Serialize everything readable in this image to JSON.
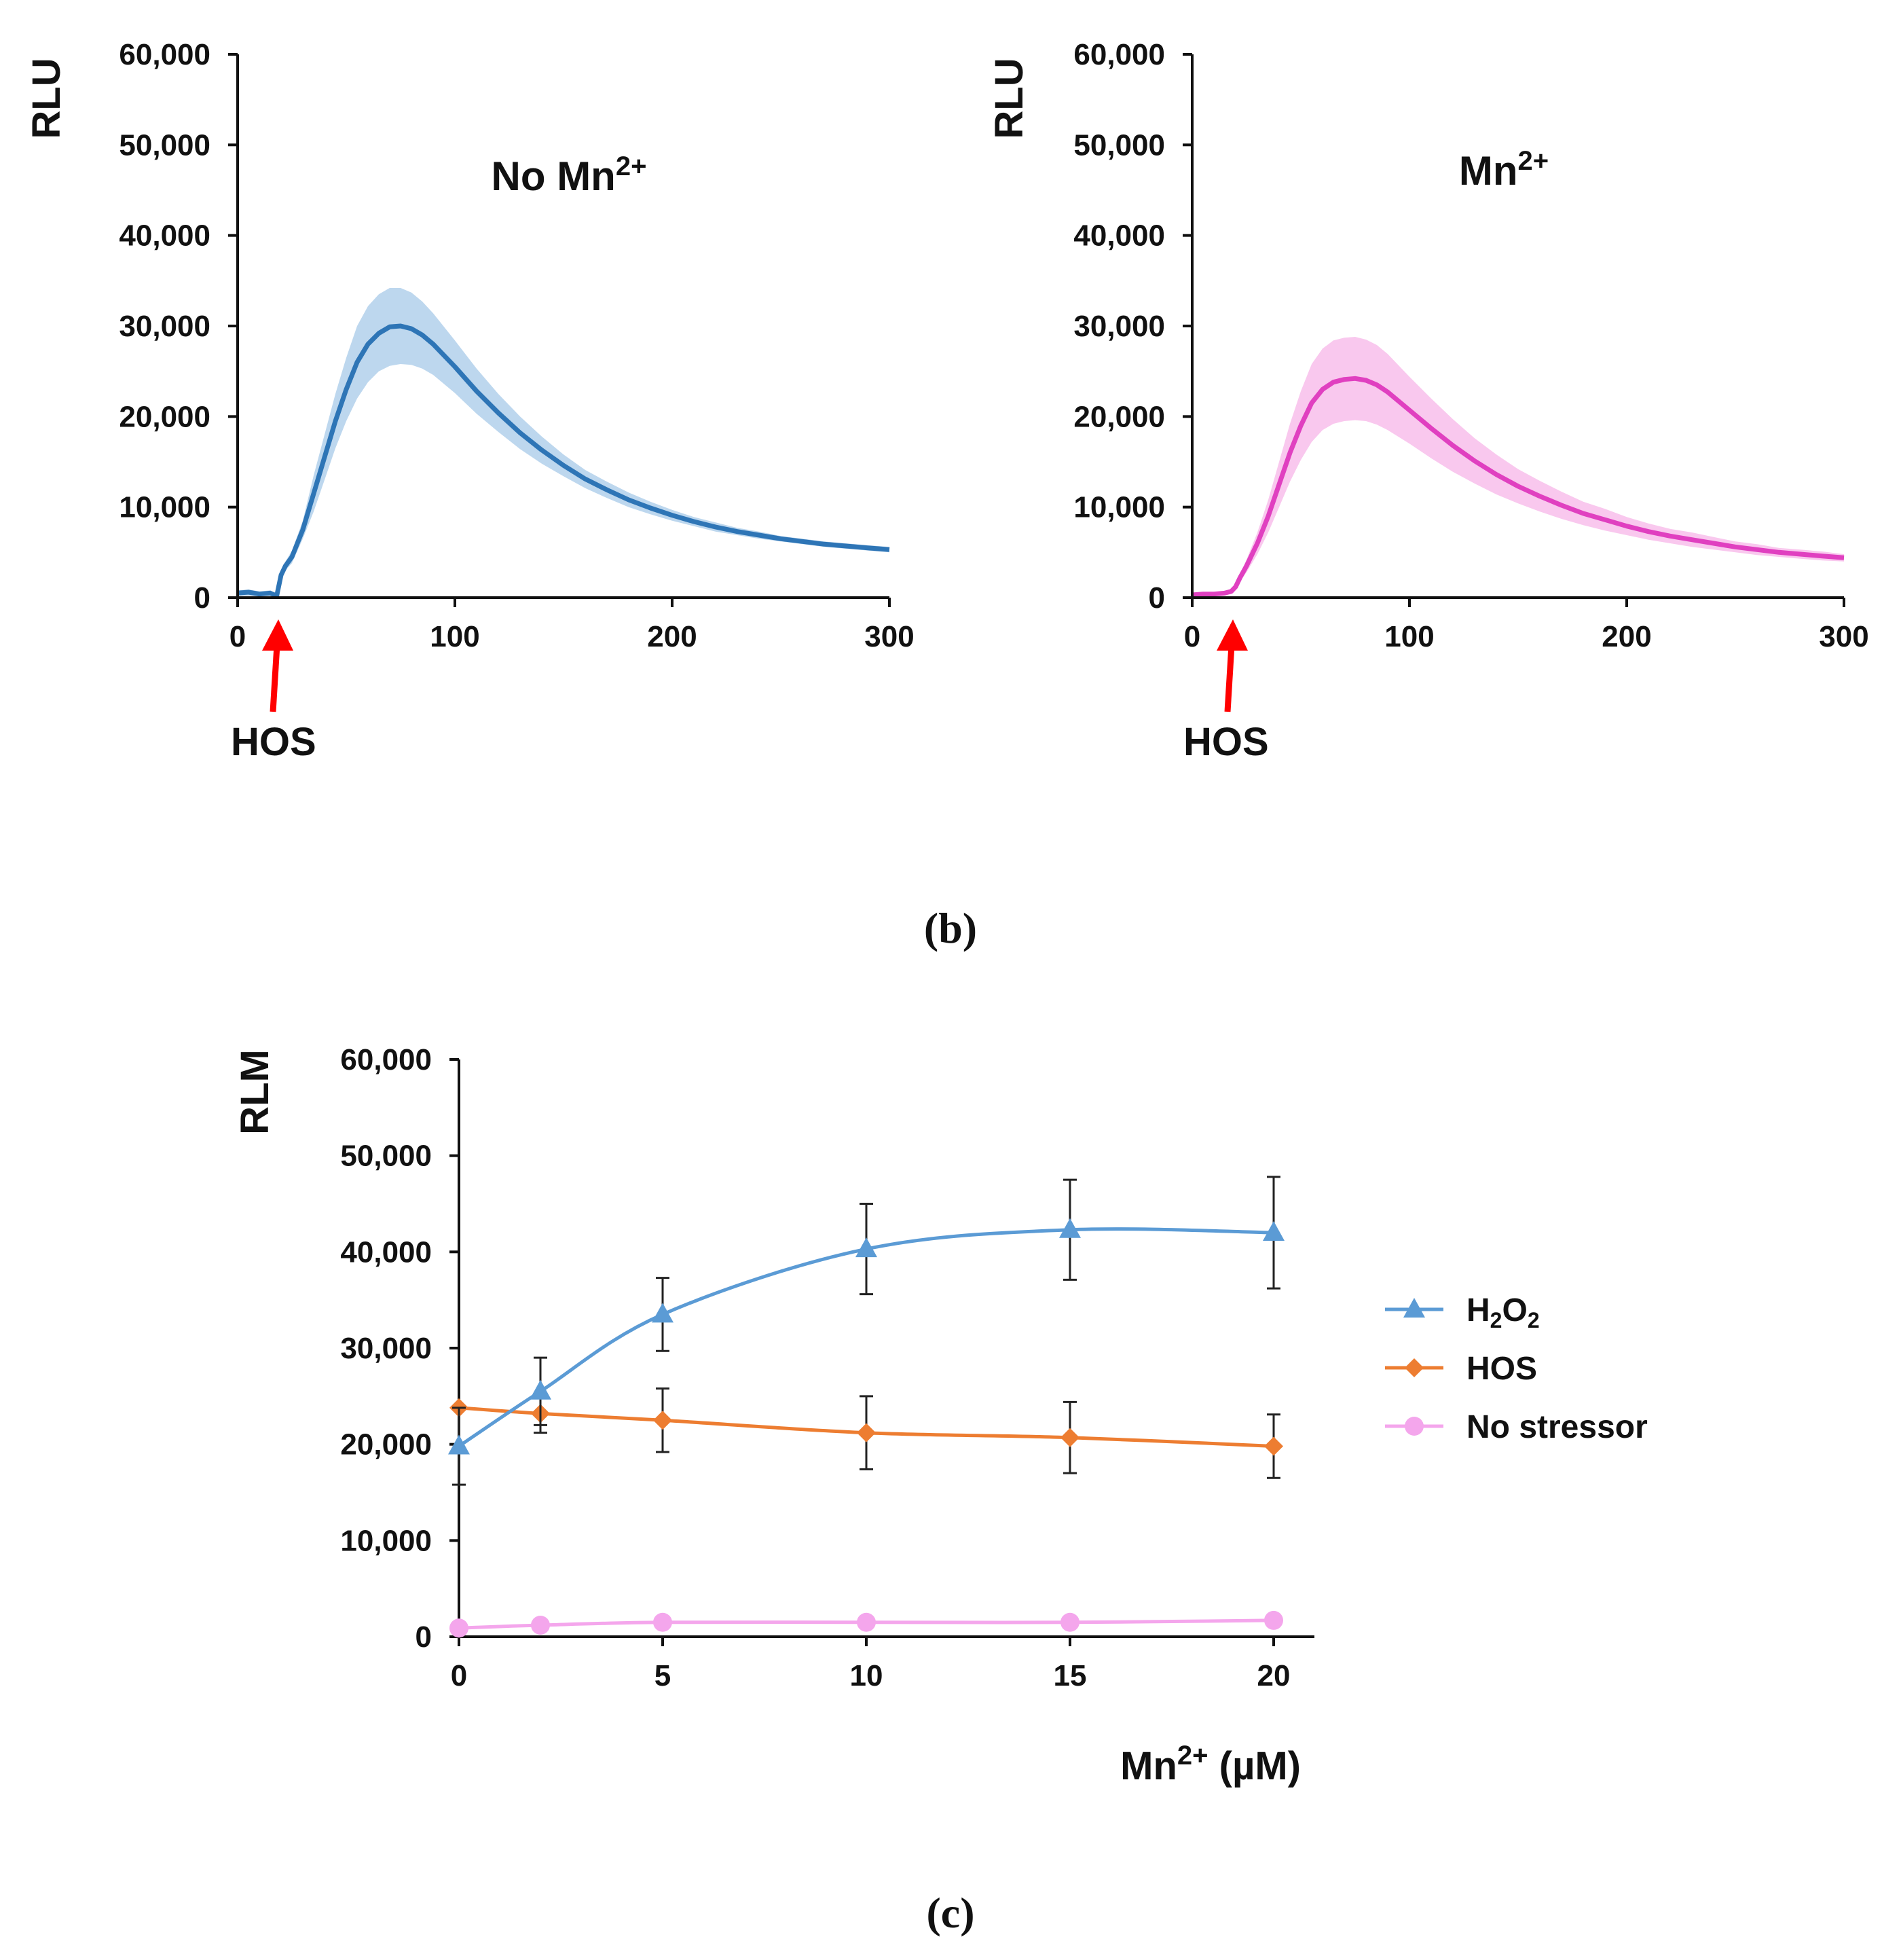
{
  "chart_data": [
    {
      "id": "b_left",
      "type": "line",
      "title": "No Mn2+",
      "title_base": "No Mn",
      "title_sup": "2+",
      "ylabel": "RLU",
      "xlabel": "",
      "ylim": [
        0,
        60000
      ],
      "xlim": [
        0,
        300
      ],
      "yticks": [
        "0",
        "10,000",
        "20,000",
        "30,000",
        "40,000",
        "50,000",
        "60,000"
      ],
      "ytick_values": [
        0,
        10000,
        20000,
        30000,
        40000,
        50000,
        60000
      ],
      "xticks": [
        "0",
        "100",
        "200",
        "300"
      ],
      "xtick_values": [
        0,
        100,
        200,
        300
      ],
      "annotation": {
        "text": "HOS",
        "x": 18
      },
      "color": "#2e75b6",
      "band_color": "#bdd7ee",
      "series": [
        {
          "x": [
            0,
            5,
            10,
            15,
            18,
            20,
            22,
            25,
            30,
            35,
            40,
            45,
            50,
            55,
            60,
            65,
            70,
            75,
            80,
            85,
            90,
            100,
            110,
            120,
            130,
            140,
            150,
            160,
            170,
            180,
            190,
            200,
            210,
            220,
            230,
            240,
            250,
            260,
            270,
            280,
            290,
            300
          ],
          "y": [
            500,
            600,
            400,
            500,
            200,
            2500,
            3500,
            4500,
            7500,
            11500,
            15500,
            19500,
            23000,
            26000,
            28000,
            29200,
            29900,
            30000,
            29700,
            29000,
            28000,
            25500,
            22800,
            20400,
            18200,
            16300,
            14600,
            13100,
            11900,
            10800,
            9900,
            9100,
            8400,
            7800,
            7300,
            6900,
            6500,
            6200,
            5900,
            5700,
            5500,
            5300
          ],
          "lower": [
            200,
            200,
            200,
            200,
            100,
            2000,
            3000,
            3800,
            6500,
            9500,
            13000,
            16500,
            19500,
            22000,
            23800,
            25000,
            25600,
            25800,
            25700,
            25300,
            24600,
            22600,
            20300,
            18300,
            16400,
            14800,
            13400,
            12100,
            11000,
            10000,
            9200,
            8500,
            7900,
            7300,
            6900,
            6500,
            6200,
            5900,
            5600,
            5400,
            5200,
            5000
          ],
          "upper": [
            800,
            900,
            700,
            800,
            400,
            3000,
            4000,
            5200,
            8500,
            13500,
            18000,
            22500,
            26500,
            30000,
            32200,
            33500,
            34200,
            34200,
            33700,
            32700,
            31400,
            28400,
            25300,
            22500,
            20000,
            17800,
            15800,
            14100,
            12800,
            11600,
            10600,
            9700,
            8900,
            8300,
            7700,
            7300,
            6800,
            6500,
            6200,
            6000,
            5800,
            5600
          ]
        }
      ]
    },
    {
      "id": "b_right",
      "type": "line",
      "title": "Mn2+",
      "title_base": "Mn",
      "title_sup": "2+",
      "ylabel": "RLU",
      "xlabel": "",
      "ylim": [
        0,
        60000
      ],
      "xlim": [
        0,
        300
      ],
      "yticks": [
        "0",
        "10,000",
        "20,000",
        "30,000",
        "40,000",
        "50,000",
        "60,000"
      ],
      "ytick_values": [
        0,
        10000,
        20000,
        30000,
        40000,
        50000,
        60000
      ],
      "xticks": [
        "0",
        "100",
        "200",
        "300"
      ],
      "xtick_values": [
        0,
        100,
        200,
        300
      ],
      "annotation": {
        "text": "HOS",
        "x": 18
      },
      "color": "#e040c0",
      "band_color": "#f9c8ee",
      "series": [
        {
          "x": [
            0,
            5,
            10,
            15,
            18,
            20,
            22,
            25,
            30,
            35,
            40,
            45,
            50,
            55,
            60,
            65,
            70,
            75,
            80,
            85,
            90,
            100,
            110,
            120,
            130,
            140,
            150,
            160,
            170,
            180,
            190,
            200,
            210,
            220,
            230,
            240,
            250,
            260,
            270,
            280,
            290,
            300
          ],
          "y": [
            300,
            400,
            400,
            500,
            700,
            1200,
            2200,
            3500,
            6000,
            9000,
            12500,
            16000,
            19000,
            21500,
            23000,
            23800,
            24100,
            24200,
            24000,
            23500,
            22700,
            20700,
            18700,
            16800,
            15100,
            13600,
            12300,
            11200,
            10200,
            9300,
            8600,
            7900,
            7300,
            6800,
            6400,
            6000,
            5600,
            5300,
            5000,
            4800,
            4600,
            4400
          ],
          "lower": [
            100,
            200,
            200,
            300,
            400,
            900,
            1800,
            2800,
            4800,
            7200,
            10000,
            12800,
            15200,
            17200,
            18500,
            19200,
            19500,
            19600,
            19500,
            19100,
            18500,
            17000,
            15400,
            13900,
            12600,
            11400,
            10400,
            9500,
            8700,
            8000,
            7400,
            6900,
            6400,
            6000,
            5600,
            5300,
            5000,
            4700,
            4500,
            4300,
            4100,
            4000
          ],
          "upper": [
            500,
            600,
            600,
            700,
            1000,
            1500,
            2600,
            4200,
            7200,
            10800,
            15000,
            19200,
            22800,
            25800,
            27500,
            28400,
            28700,
            28800,
            28500,
            27900,
            26900,
            24400,
            22000,
            19700,
            17600,
            15800,
            14200,
            12900,
            11700,
            10600,
            9800,
            8900,
            8200,
            7600,
            7200,
            6700,
            6200,
            5900,
            5500,
            5300,
            5100,
            4800
          ]
        }
      ]
    },
    {
      "id": "c",
      "type": "line",
      "title": "",
      "ylabel": "RLM",
      "xlabel": "Mn2+ (µM)",
      "xlabel_base": "Mn",
      "xlabel_sup": "2+",
      "xlabel_rest": " (µM)",
      "ylim": [
        0,
        60000
      ],
      "xlim": [
        0,
        21
      ],
      "yticks": [
        "0",
        "10,000",
        "20,000",
        "30,000",
        "40,000",
        "50,000",
        "60,000"
      ],
      "ytick_values": [
        0,
        10000,
        20000,
        30000,
        40000,
        50000,
        60000
      ],
      "xticks": [
        "0",
        "5",
        "10",
        "15",
        "20"
      ],
      "xtick_values": [
        0,
        5,
        10,
        15,
        20
      ],
      "legend_position": "right",
      "series": [
        {
          "name": "H2O2",
          "name_parts": [
            "H",
            "2",
            "O",
            "2"
          ],
          "marker": "triangle",
          "color": "#5b9bd5",
          "x": [
            0,
            2,
            5,
            10,
            15,
            20
          ],
          "y": [
            19800,
            25500,
            33500,
            40300,
            42300,
            42000
          ],
          "err": [
            4000,
            3500,
            3800,
            4700,
            5200,
            5800
          ]
        },
        {
          "name": "HOS",
          "marker": "diamond",
          "color": "#ed7d31",
          "x": [
            0,
            2,
            5,
            10,
            15,
            20
          ],
          "y": [
            23800,
            23200,
            22500,
            21200,
            20700,
            19800
          ],
          "err": [
            0,
            2000,
            3300,
            3800,
            3700,
            3300
          ]
        },
        {
          "name": "No stressor",
          "marker": "circle",
          "color": "#f4a6ec",
          "x": [
            0,
            2,
            5,
            10,
            15,
            20
          ],
          "y": [
            900,
            1200,
            1500,
            1500,
            1500,
            1700
          ],
          "err": [
            0,
            0,
            0,
            0,
            0,
            0
          ]
        }
      ]
    }
  ],
  "captions": {
    "b": "(b)",
    "c": "(c)"
  }
}
